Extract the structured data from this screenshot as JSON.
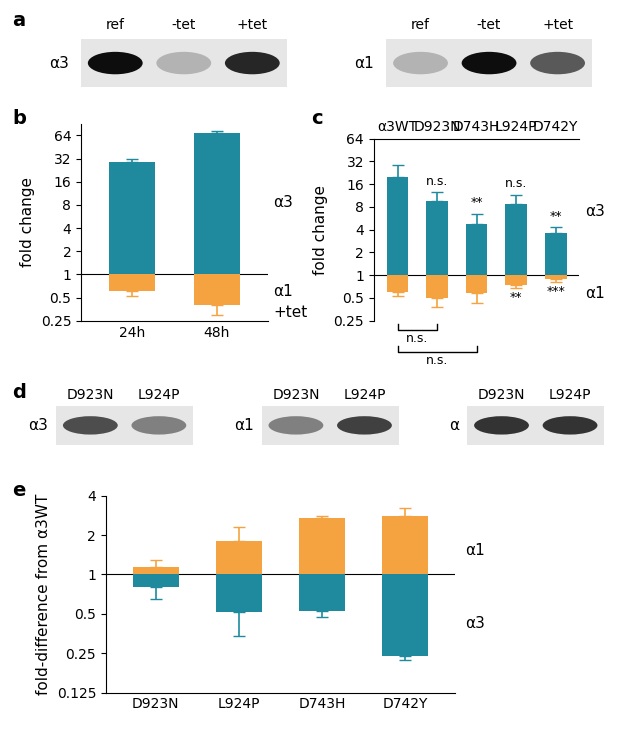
{
  "chart_data": [
    {
      "panel": "b",
      "type": "bar",
      "y_label": "fold change",
      "log": "y",
      "grid": false,
      "categories": [
        "24h",
        "48h"
      ],
      "annotations": [
        {
          "text": "+tet"
        }
      ],
      "ylim": [
        0.25,
        90
      ],
      "yticks": [
        0.25,
        0.5,
        1,
        2,
        4,
        8,
        16,
        32,
        64
      ],
      "series": [
        {
          "name": "α3",
          "color": "#1f8a9e",
          "values": [
            29,
            68
          ],
          "errors": [
            2.5,
            5
          ]
        },
        {
          "name": "α1",
          "color": "#f4a340",
          "values": [
            0.6,
            0.4
          ],
          "errors": [
            0.07,
            0.1
          ]
        }
      ]
    },
    {
      "panel": "c",
      "type": "bar",
      "y_label": "fold change",
      "log": "y",
      "grid": false,
      "categories": [
        "α3WT",
        "D923N",
        "D743H",
        "L924P",
        "D742Y"
      ],
      "ylim": [
        0.25,
        64
      ],
      "yticks": [
        0.25,
        0.5,
        1,
        2,
        4,
        8,
        16,
        32,
        64
      ],
      "series": [
        {
          "name": "α3",
          "color": "#1f8a9e",
          "values": [
            20,
            9.5,
            4.7,
            8.8,
            3.6
          ],
          "errors": [
            9,
            3,
            1.8,
            2.7,
            0.7
          ],
          "significance": [
            null,
            "n.s.",
            "**",
            "n.s.",
            "**"
          ]
        },
        {
          "name": "α1",
          "color": "#f4a340",
          "values": [
            0.6,
            0.5,
            0.58,
            0.75,
            0.9
          ],
          "errors": [
            0.07,
            0.12,
            0.15,
            0.08,
            0.08
          ],
          "significance": [
            null,
            null,
            null,
            "**",
            "***"
          ]
        }
      ],
      "comparisons": [
        {
          "from": "α3WT",
          "to": "D923N",
          "label": "n.s."
        },
        {
          "from": "α3WT",
          "to": "D743H",
          "label": "n.s."
        }
      ]
    },
    {
      "panel": "e",
      "type": "bar",
      "y_label": "fold-difference from α3WT",
      "log": "y",
      "grid": false,
      "categories": [
        "D923N",
        "L924P",
        "D743H",
        "D742Y"
      ],
      "ylim": [
        0.125,
        4
      ],
      "yticks": [
        0.125,
        0.25,
        0.5,
        1,
        2,
        4
      ],
      "series": [
        {
          "name": "α1",
          "color": "#f4a340",
          "values": [
            1.15,
            1.8,
            2.7,
            2.8
          ],
          "errors": [
            0.15,
            0.5,
            0.12,
            0.4
          ]
        },
        {
          "name": "α3",
          "color": "#1f8a9e",
          "values": [
            0.8,
            0.52,
            0.53,
            0.24
          ],
          "errors": [
            0.15,
            0.18,
            0.06,
            0.02
          ]
        }
      ]
    }
  ],
  "blots": [
    {
      "panel": "a",
      "blots": [
        {
          "protein": "α3",
          "lanes": [
            "ref",
            "-tet",
            "+tet"
          ],
          "values": [
            0.95,
            0.3,
            0.85
          ]
        },
        {
          "protein": "α1",
          "lanes": [
            "ref",
            "-tet",
            "+tet"
          ],
          "values": [
            0.3,
            0.95,
            0.65
          ]
        }
      ]
    },
    {
      "panel": "d",
      "blots": [
        {
          "protein": "α3",
          "lanes": [
            "D923N",
            "L924P"
          ],
          "values": [
            0.7,
            0.5
          ]
        },
        {
          "protein": "α1",
          "lanes": [
            "D923N",
            "L924P"
          ],
          "values": [
            0.5,
            0.75
          ]
        },
        {
          "protein": "α",
          "lanes": [
            "D923N",
            "L924P"
          ],
          "values": [
            0.8,
            0.8
          ]
        }
      ]
    }
  ]
}
